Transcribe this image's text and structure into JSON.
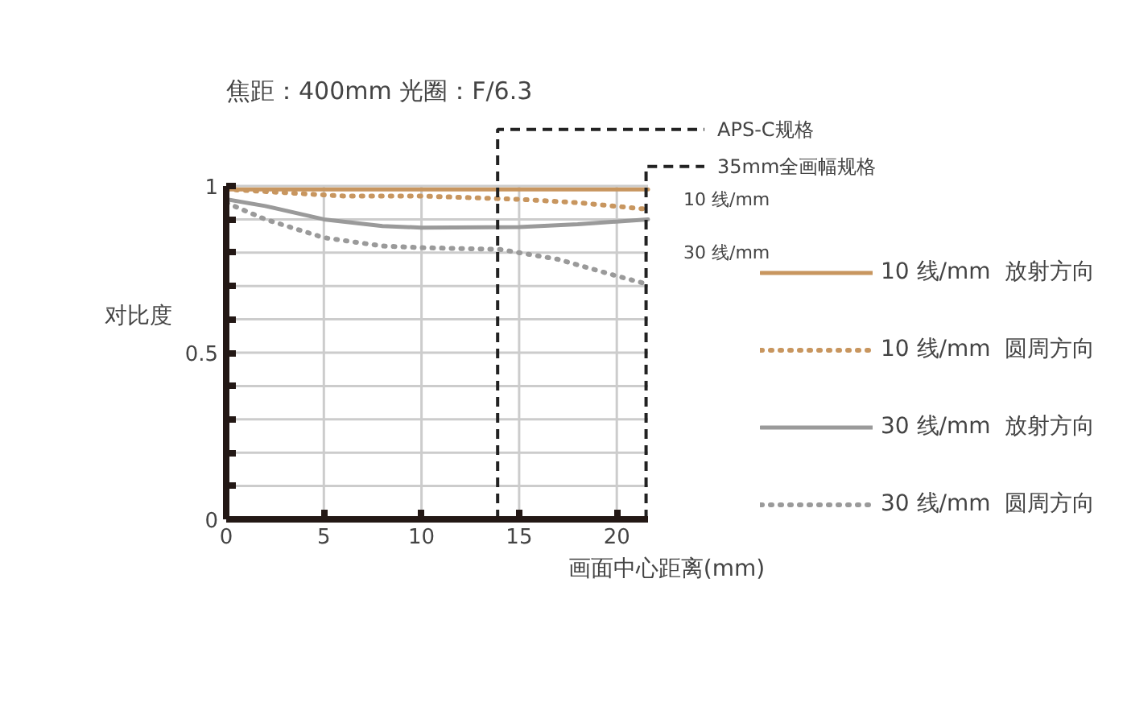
{
  "chart_data": {
    "type": "line",
    "title": "焦距：400mm  光圈：F/6.3",
    "xlabel": "画面中心距离(mm)",
    "ylabel": "对比度",
    "xlim": [
      0,
      21.6
    ],
    "ylim": [
      0,
      1
    ],
    "xticks": [
      0,
      5,
      10,
      15,
      20
    ],
    "yticks": [
      0,
      {
        "value": 0.1,
        "label": null
      },
      {
        "value": 0.2,
        "label": null
      },
      {
        "value": 0.3,
        "label": null
      },
      {
        "value": 0.4,
        "label": null
      },
      0.5,
      {
        "value": 0.6,
        "label": null
      },
      {
        "value": 0.7,
        "label": null
      },
      {
        "value": 0.8,
        "label": null
      },
      {
        "value": 0.9,
        "label": null
      },
      1
    ],
    "grid": true,
    "legend": "right",
    "series": [
      {
        "name": "10 线/mm  放射方向",
        "color": "#c8965f",
        "line_style": "solid",
        "x": [
          0,
          5,
          10,
          15,
          21.6
        ],
        "values": [
          0.99,
          0.99,
          0.99,
          0.99,
          0.99
        ]
      },
      {
        "name": "10 线/mm  圆周方向",
        "color": "#c8965f",
        "line_style": "dotted",
        "x": [
          0,
          3,
          6,
          10,
          15,
          18,
          21.6
        ],
        "values": [
          0.99,
          0.98,
          0.97,
          0.97,
          0.96,
          0.95,
          0.93
        ]
      },
      {
        "name": "30 线/mm  放射方向",
        "color": "#9a9a9a",
        "line_style": "solid",
        "x": [
          0,
          2,
          5,
          8,
          10,
          15,
          18,
          21.6
        ],
        "values": [
          0.96,
          0.94,
          0.9,
          0.88,
          0.875,
          0.877,
          0.885,
          0.9
        ]
      },
      {
        "name": "30 线/mm  圆周方向",
        "color": "#9a9a9a",
        "line_style": "dotted",
        "x": [
          0,
          2,
          5,
          8,
          10,
          14,
          17,
          20,
          21.6
        ],
        "values": [
          0.95,
          0.9,
          0.845,
          0.82,
          0.815,
          0.81,
          0.78,
          0.73,
          0.705
        ]
      }
    ],
    "ref_lines": [
      {
        "axis": "x",
        "value": 13.9,
        "label": "APS-C规格",
        "color": "#222222",
        "line_style": "dashed"
      },
      {
        "axis": "x",
        "value": 21.5,
        "label": "35mm全画幅规格",
        "color": "#222222",
        "line_style": "dashed"
      }
    ],
    "annotations": [
      {
        "text": "10 线/mm",
        "x": 21.6,
        "y": 0.96
      },
      {
        "text": "30 线/mm",
        "x": 21.6,
        "y": 0.8
      }
    ]
  }
}
